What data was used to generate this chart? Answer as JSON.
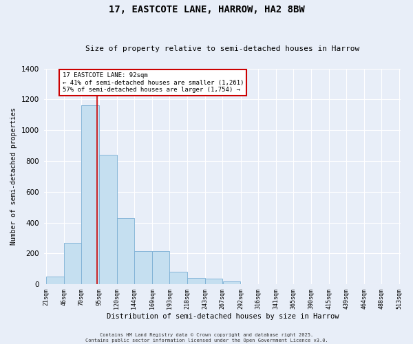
{
  "title": "17, EASTCOTE LANE, HARROW, HA2 8BW",
  "subtitle": "Size of property relative to semi-detached houses in Harrow",
  "xlabel": "Distribution of semi-detached houses by size in Harrow",
  "ylabel": "Number of semi-detached properties",
  "property_label": "17 EASTCOTE LANE: 92sqm",
  "smaller_pct": "41% of semi-detached houses are smaller (1,261)",
  "larger_pct": "57% of semi-detached houses are larger (1,754)",
  "property_size": 92,
  "bin_edges": [
    21,
    46,
    70,
    95,
    120,
    144,
    169,
    193,
    218,
    243,
    267,
    292,
    316,
    341,
    365,
    390,
    415,
    439,
    464,
    488,
    513
  ],
  "bar_heights": [
    50,
    270,
    1160,
    840,
    430,
    215,
    215,
    80,
    40,
    35,
    20,
    0,
    0,
    0,
    0,
    0,
    0,
    0,
    0,
    0
  ],
  "bar_color": "#c5dff0",
  "bar_edge_color": "#7bafd4",
  "vline_color": "#cc0000",
  "background_color": "#e8eef8",
  "grid_color": "#ffffff",
  "annotation_box_color": "#cc0000",
  "ylim": [
    0,
    1400
  ],
  "yticks": [
    0,
    200,
    400,
    600,
    800,
    1000,
    1200,
    1400
  ],
  "footer": "Contains HM Land Registry data © Crown copyright and database right 2025.\nContains public sector information licensed under the Open Government Licence v3.0."
}
